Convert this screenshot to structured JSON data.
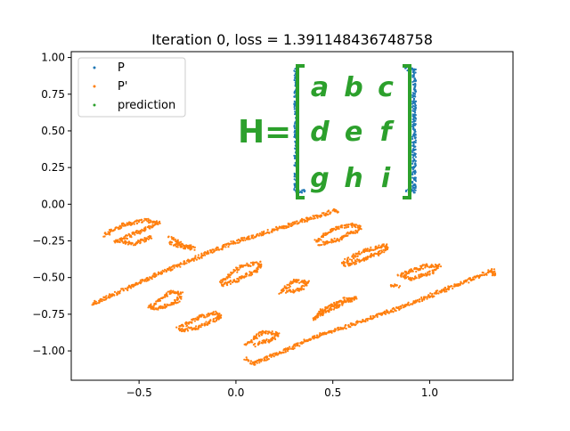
{
  "chart_data": {
    "type": "scatter",
    "title": "Iteration 0, loss = 1.391148436748758",
    "xlabel": "",
    "ylabel": "",
    "xlim": [
      -0.85,
      1.43
    ],
    "ylim": [
      -1.2,
      1.04
    ],
    "xticks": [
      -0.5,
      0.0,
      0.5,
      1.0
    ],
    "xtick_labels": [
      "−0.5",
      "0.0",
      "0.5",
      "1.0"
    ],
    "yticks": [
      1.0,
      0.75,
      0.5,
      0.25,
      0.0,
      -0.25,
      -0.5,
      -0.75,
      -1.0
    ],
    "ytick_labels": [
      "1.00",
      "0.75",
      "0.50",
      "0.25",
      "0.00",
      "−0.25",
      "−0.50",
      "−0.75",
      "−1.00"
    ],
    "grid": false,
    "legend_position": "upper-left",
    "series": [
      {
        "name": "P",
        "color": "#1f77b4",
        "marker": "point",
        "strokes": [
          {
            "shape": "bracket",
            "points": [
              [
                0.31,
                0.92
              ],
              [
                0.31,
                0.09
              ],
              [
                0.35,
                0.09
              ]
            ]
          },
          {
            "shape": "bracket",
            "points": [
              [
                0.88,
                0.92
              ],
              [
                0.92,
                0.92
              ],
              [
                0.92,
                0.09
              ],
              [
                0.88,
                0.09
              ]
            ]
          }
        ]
      },
      {
        "name": "P'",
        "color": "#ff7f0e",
        "marker": "point",
        "strokes": [
          {
            "shape": "bracket-left-transformed",
            "points": [
              [
                -0.74,
                -0.68
              ],
              [
                -0.36,
                -0.45
              ],
              [
                -0.01,
                -0.26
              ],
              [
                0.52,
                -0.04
              ],
              [
                0.52,
                -0.06
              ]
            ]
          },
          {
            "shape": "bracket-right-transformed",
            "points": [
              [
                0.05,
                -1.05
              ],
              [
                0.09,
                -1.09
              ],
              [
                0.42,
                -0.9
              ],
              [
                0.86,
                -0.7
              ],
              [
                1.33,
                -0.45
              ],
              [
                1.33,
                -0.49
              ]
            ]
          },
          {
            "shape": "loop-a",
            "points": [
              [
                -0.68,
                -0.21
              ],
              [
                -0.58,
                -0.14
              ],
              [
                -0.46,
                -0.11
              ],
              [
                -0.4,
                -0.13
              ],
              [
                -0.5,
                -0.19
              ],
              [
                -0.62,
                -0.25
              ],
              [
                -0.52,
                -0.27
              ],
              [
                -0.44,
                -0.22
              ]
            ]
          },
          {
            "shape": "loop-b",
            "points": [
              [
                -0.34,
                -0.22
              ],
              [
                -0.3,
                -0.26
              ],
              [
                -0.22,
                -0.3
              ],
              [
                -0.28,
                -0.29
              ],
              [
                -0.34,
                -0.26
              ]
            ]
          },
          {
            "shape": "loop-c",
            "points": [
              [
                0.41,
                -0.25
              ],
              [
                0.52,
                -0.16
              ],
              [
                0.62,
                -0.14
              ],
              [
                0.64,
                -0.17
              ],
              [
                0.53,
                -0.24
              ],
              [
                0.43,
                -0.27
              ]
            ]
          },
          {
            "shape": "loop-d",
            "points": [
              [
                -0.44,
                -0.7
              ],
              [
                -0.34,
                -0.6
              ],
              [
                -0.28,
                -0.61
              ],
              [
                -0.3,
                -0.66
              ],
              [
                -0.4,
                -0.71
              ],
              [
                -0.45,
                -0.7
              ]
            ]
          },
          {
            "shape": "loop-e",
            "points": [
              [
                -0.08,
                -0.53
              ],
              [
                0.03,
                -0.42
              ],
              [
                0.13,
                -0.4
              ],
              [
                0.11,
                -0.45
              ],
              [
                0.0,
                -0.52
              ],
              [
                -0.07,
                -0.55
              ]
            ]
          },
          {
            "shape": "loop-f",
            "points": [
              [
                0.55,
                -0.4
              ],
              [
                0.66,
                -0.32
              ],
              [
                0.77,
                -0.28
              ],
              [
                0.78,
                -0.31
              ],
              [
                0.67,
                -0.37
              ],
              [
                0.56,
                -0.42
              ]
            ]
          },
          {
            "shape": "loop-g",
            "points": [
              [
                -0.3,
                -0.85
              ],
              [
                -0.19,
                -0.77
              ],
              [
                -0.1,
                -0.74
              ],
              [
                -0.08,
                -0.77
              ],
              [
                -0.2,
                -0.84
              ],
              [
                -0.29,
                -0.86
              ]
            ]
          },
          {
            "shape": "loop-h",
            "points": [
              [
                0.23,
                -0.6
              ],
              [
                0.3,
                -0.52
              ],
              [
                0.37,
                -0.53
              ],
              [
                0.34,
                -0.58
              ],
              [
                0.26,
                -0.6
              ]
            ]
          },
          {
            "shape": "loop-i",
            "points": [
              [
                0.86,
                -0.48
              ],
              [
                0.98,
                -0.42
              ],
              [
                1.05,
                -0.42
              ],
              [
                1.02,
                -0.46
              ],
              [
                0.9,
                -0.51
              ],
              [
                0.84,
                -0.48
              ]
            ]
          },
          {
            "shape": "loop-j",
            "points": [
              [
                0.05,
                -0.96
              ],
              [
                0.14,
                -0.87
              ],
              [
                0.22,
                -0.88
              ],
              [
                0.19,
                -0.92
              ],
              [
                0.1,
                -0.96
              ]
            ]
          },
          {
            "shape": "loop-k",
            "points": [
              [
                0.4,
                -0.78
              ],
              [
                0.51,
                -0.7
              ],
              [
                0.62,
                -0.64
              ],
              [
                0.56,
                -0.65
              ],
              [
                0.45,
                -0.72
              ],
              [
                0.4,
                -0.78
              ]
            ]
          },
          {
            "shape": "loop-l",
            "points": [
              [
                0.84,
                -0.56
              ],
              [
                0.8,
                -0.55
              ]
            ]
          }
        ]
      },
      {
        "name": "prediction",
        "color": "#2ca02c",
        "marker": "point",
        "strokes": []
      }
    ],
    "annotations": [
      {
        "kind": "matrix-equation",
        "color": "#2ca02c",
        "lhs": "H",
        "equals": "=",
        "rows": [
          [
            "a",
            "b",
            "c"
          ],
          [
            "d",
            "e",
            "f"
          ],
          [
            "g",
            "h",
            "i"
          ]
        ]
      }
    ]
  }
}
